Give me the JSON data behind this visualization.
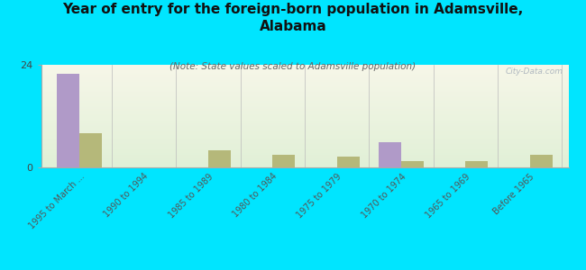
{
  "title": "Year of entry for the foreign-born population in Adamsville,\nAlabama",
  "subtitle": "(Note: State values scaled to Adamsville population)",
  "categories": [
    "1995 to March ...",
    "1990 to 1994",
    "1985 to 1989",
    "1980 to 1984",
    "1975 to 1979",
    "1970 to 1974",
    "1965 to 1969",
    "Before 1965"
  ],
  "adamsville_values": [
    22,
    0,
    0,
    0,
    0,
    6,
    0,
    0
  ],
  "alabama_values": [
    8,
    0,
    4,
    3,
    2.5,
    1.5,
    1.5,
    3
  ],
  "adamsville_color": "#b09ac8",
  "alabama_color": "#b5b87a",
  "background_color": "#00e5ff",
  "ylim": [
    0,
    24
  ],
  "yticks": [
    0,
    24
  ],
  "bar_width": 0.35,
  "watermark": "City-Data.com"
}
